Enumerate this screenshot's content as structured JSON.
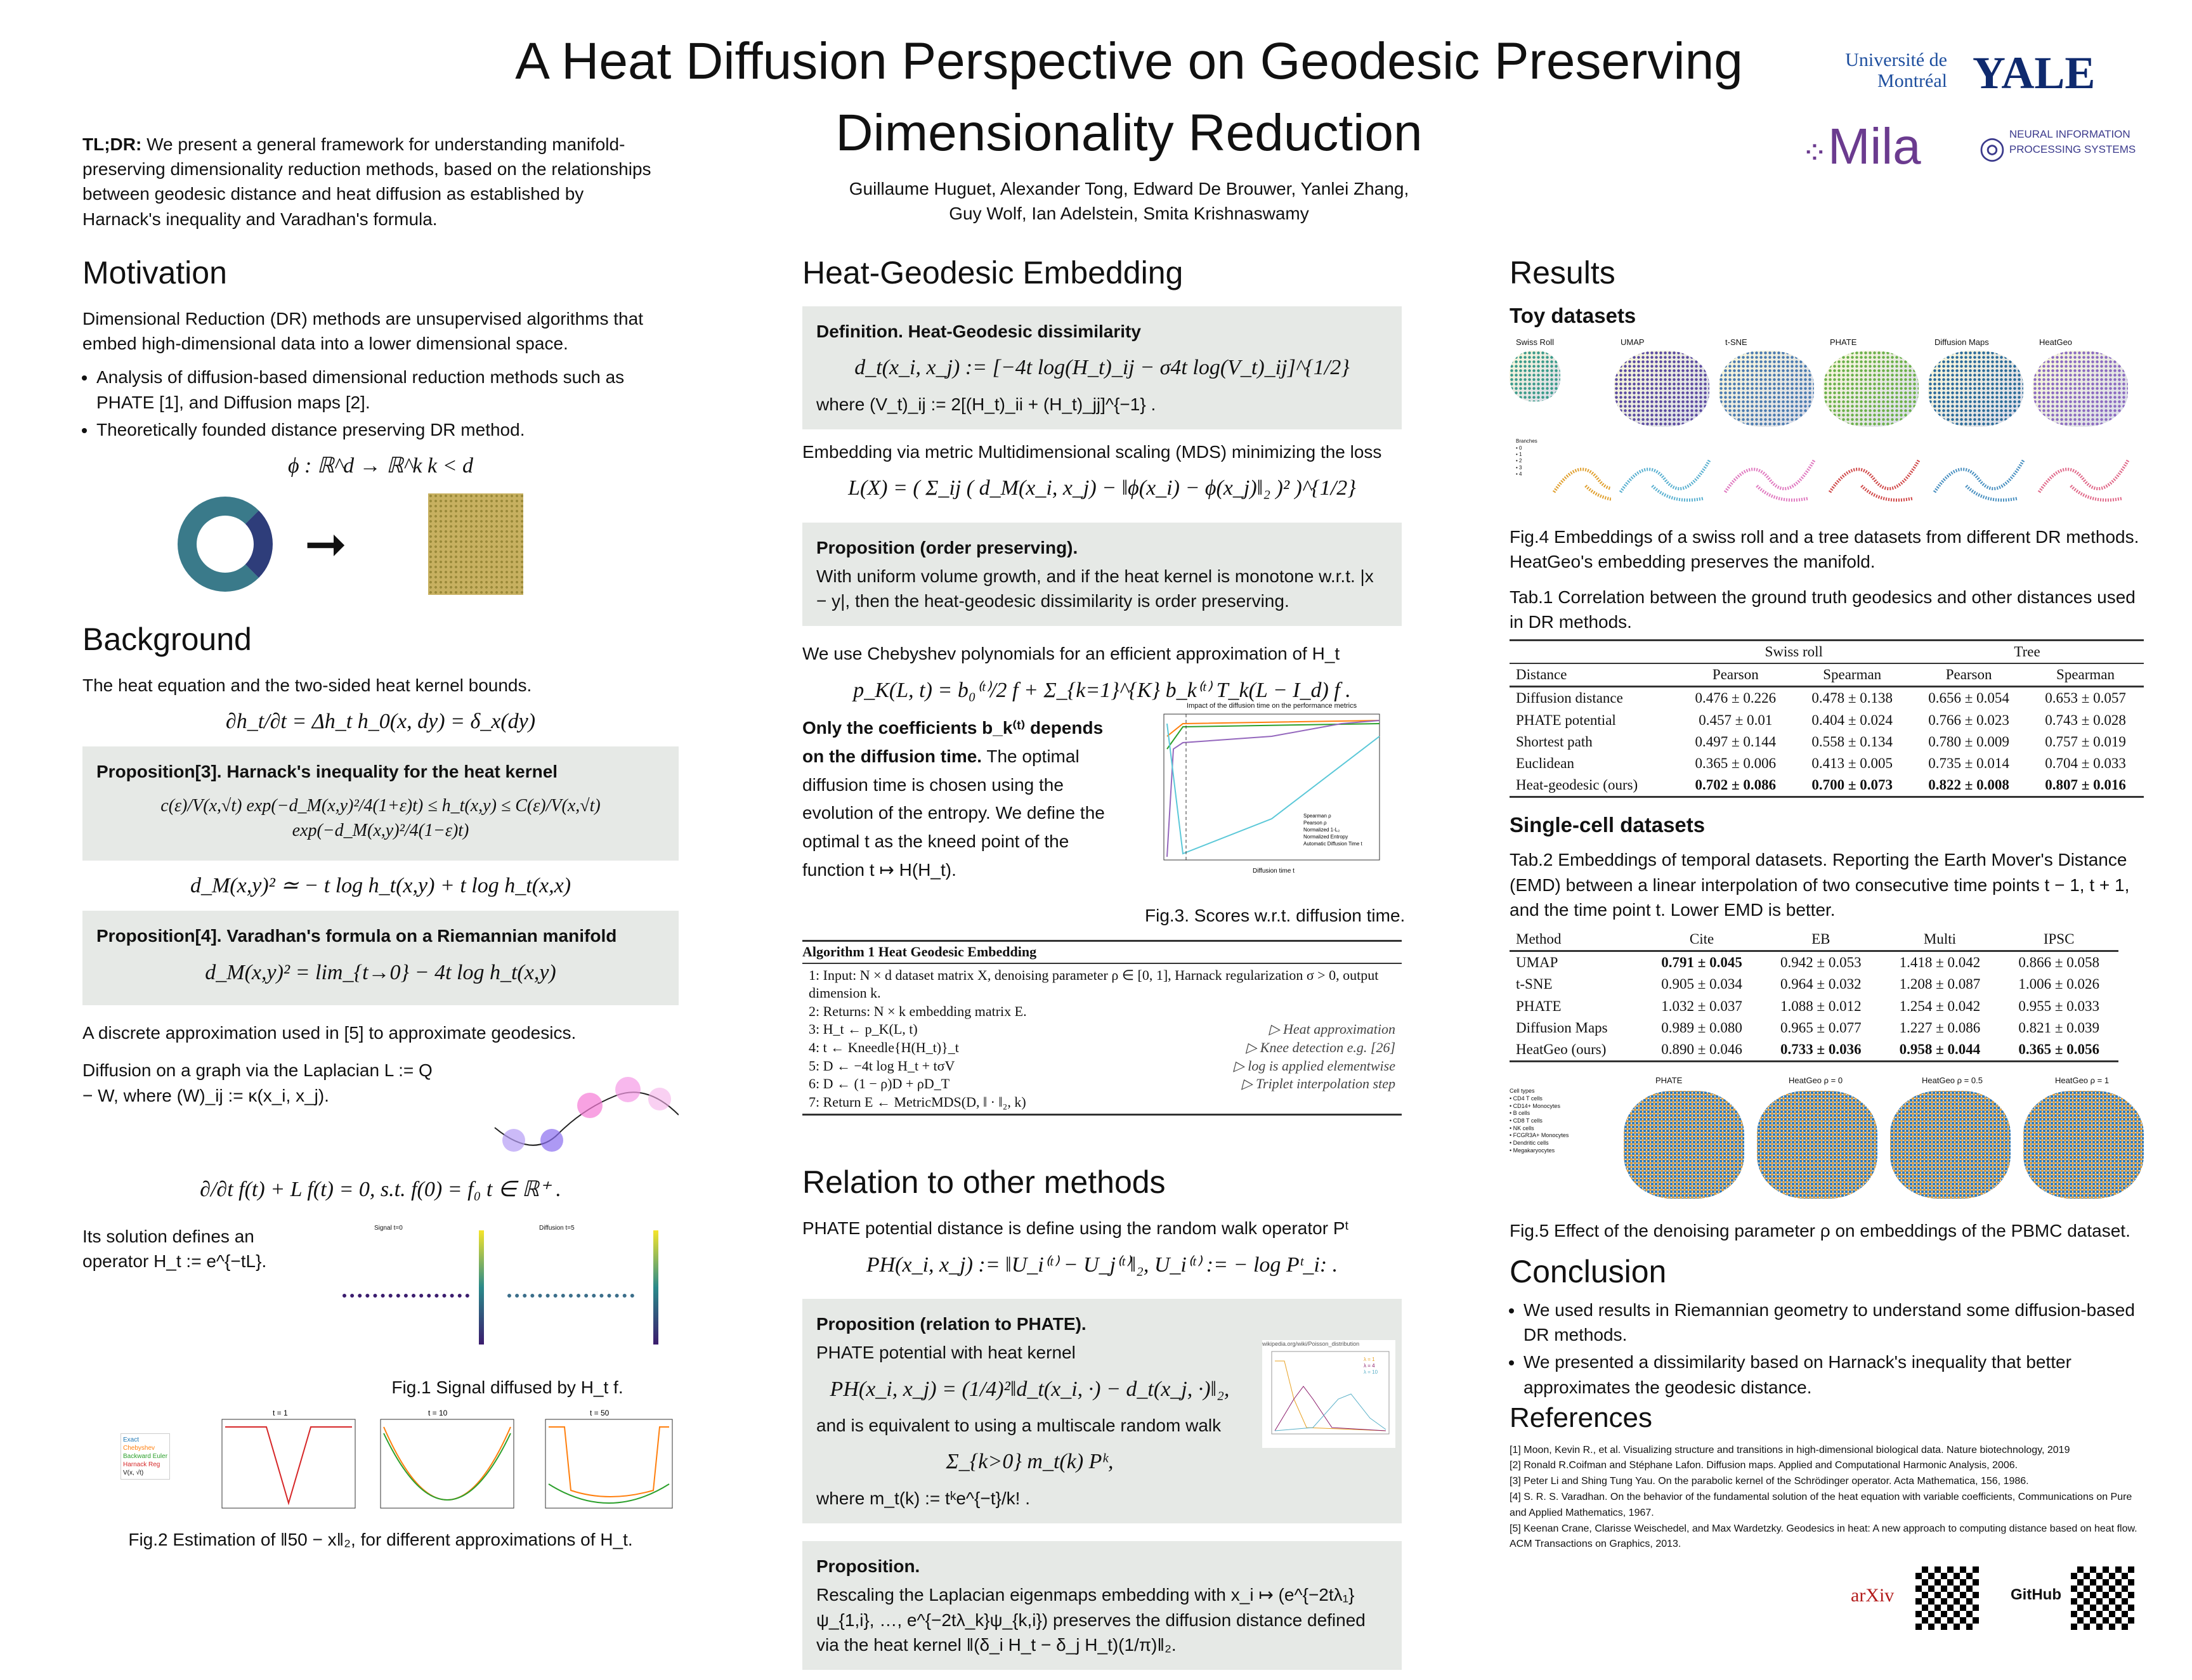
{
  "title": "A Heat Diffusion Perspective on Geodesic Preserving Dimensionality Reduction",
  "authors": [
    "Guillaume Huguet, Alexander Tong, Edward De Brouwer, Yanlei Zhang,",
    "Guy Wolf, Ian Adelstein, Smita Krishnaswamy"
  ],
  "logos": {
    "udem": "Université de Montréal",
    "yale": "YALE",
    "mila": "Mila",
    "neurips": "NEURAL INFORMATION PROCESSING SYSTEMS",
    "arxiv": "arXiv",
    "github": "GitHub"
  },
  "tldr": {
    "label": "TL;DR:",
    "text": "We present a general framework for understanding manifold-preserving dimensionality reduction methods, based on the relationships between geodesic distance and heat diffusion as established by Harnack's inequality and Varadhan's formula."
  },
  "motivation": {
    "heading": "Motivation",
    "text": "Dimensional Reduction (DR) methods are unsupervised algorithms that embed high-dimensional data into a lower dimensional space.",
    "bullets": [
      "Analysis of diffusion-based dimensional reduction methods such as PHATE [1], and Diffusion maps [2].",
      "Theoretically founded distance preserving DR method."
    ],
    "formula": "ϕ : ℝ^d → ℝ^k    k < d"
  },
  "background": {
    "heading": "Background",
    "text": "The heat equation and the two-sided heat kernel bounds.",
    "heat_eq": "∂h_t/∂t = Δh_t    h_0(x, dy) = δ_x(dy)",
    "prop3_title": "Proposition[3]. Harnack's inequality for the heat kernel",
    "prop3_formula": "c(ε)/V(x,√t) exp(−d_M(x,y)²/4(1+ε)t) ≤ h_t(x,y) ≤ C(ε)/V(x,√t) exp(−d_M(x,y)²/4(1−ε)t)",
    "approx": "d_M(x,y)² ≃ − t log h_t(x,y) + t log h_t(x,x)",
    "prop4_title": "Proposition[4]. Varadhan's formula on a Riemannian manifold",
    "prop4_formula": "d_M(x,y)² = lim_{t→0} − 4t log h_t(x,y)",
    "discrete": "A discrete approximation used in [5] to approximate geodesics.",
    "graph": "Diffusion on a graph via the Laplacian L := Q − W, where (W)_ij := κ(x_i, x_j).",
    "graph_eq": "∂/∂t f(t) + L f(t) = 0,  s.t.  f(0) = f₀   t ∈ ℝ⁺ .",
    "solution": "Its solution defines an operator H_t := e^{−tL}.",
    "fig1_caption": "Fig.1 Signal diffused by H_t f.",
    "fig1_titles": [
      "Signal t=0",
      "Diffusion t=5"
    ],
    "fig2_caption": "Fig.2 Estimation of ‖50 − x‖₂, for different approximations of H_t.",
    "fig2_titles": [
      "t = 1",
      "t = 10",
      "t = 50"
    ],
    "fig2_legend": [
      "Exact",
      "Chebyshev",
      "Backward Euler",
      "Harnack Reg",
      "V(x, √t)"
    ]
  },
  "heatgeo": {
    "heading": "Heat-Geodesic Embedding",
    "def_title": "Definition. Heat-Geodesic dissimilarity",
    "def_formula": "d_t(x_i, x_j) := [−4t log(H_t)_ij − σ4t log(V_t)_ij]^{1/2}",
    "def_where": "where (V_t)_ij := 2[(H_t)_ii + (H_t)_jj]^{−1} .",
    "mds": "Embedding via metric Multidimensional scaling (MDS) minimizing the loss",
    "loss": "L(X) = ( Σ_ij ( d_M(x_i, x_j) − ‖ϕ(x_i) − ϕ(x_j)‖₂ )² )^{1/2}",
    "prop_order_title": "Proposition (order preserving).",
    "prop_order_text": "With uniform volume growth, and if the heat kernel is monotone w.r.t. |x − y|, then the heat-geodesic dissimilarity is order preserving.",
    "cheb": "We use Chebyshev polynomials for an efficient approximation of H_t",
    "cheb_formula": "p_K(L, t) = b₀⁽ᵗ⁾/2 f + Σ_{k=1}^{K} b_k⁽ᵗ⁾ T_k(L − I_d) f .",
    "coef_bold": "Only the coefficients b_k⁽ᵗ⁾ depends on the diffusion time.",
    "coef_text": "The optimal diffusion time is chosen using the evolution of the entropy. We define the optimal t as the kneed point of the function t ↦ H(H_t).",
    "fig3_title": "Impact of the diffusion time on the performance metrics",
    "fig3_caption": "Fig.3. Scores w.r.t. diffusion time.",
    "fig3_xlabel": "Diffusion time t",
    "fig3_legend": [
      "Spearman ρ",
      "Pearson ρ",
      "Normalized 1-L₂",
      "Normalized Entropy",
      "Automatic Diffusion Time t"
    ],
    "algo_title": "Algorithm 1 Heat Geodesic Embedding",
    "algo_lines": [
      {
        "n": "1:",
        "t": "Input: N × d dataset matrix X, denoising parameter ρ ∈ [0, 1], Harnack regularization σ > 0, output dimension k.",
        "c": ""
      },
      {
        "n": "2:",
        "t": "Returns: N × k embedding matrix E.",
        "c": ""
      },
      {
        "n": "3:",
        "t": "H_t ← p_K(L, t)",
        "c": "▷ Heat approximation"
      },
      {
        "n": "4:",
        "t": "t ← Kneedle{H(H_t)}_t",
        "c": "▷ Knee detection e.g. [26]"
      },
      {
        "n": "5:",
        "t": "D ← −4t log H_t + tσV",
        "c": "▷ log is applied elementwise"
      },
      {
        "n": "6:",
        "t": "D ← (1 − ρ)D + ρD_T",
        "c": "▷ Triplet interpolation step"
      },
      {
        "n": "7:",
        "t": "Return E ← MetricMDS(D, ‖ · ‖₂, k)",
        "c": ""
      }
    ]
  },
  "relation": {
    "heading": "Relation to other methods",
    "text": "PHATE potential distance is define using the random walk operator Pᵗ",
    "phate_formula": "PH(x_i, x_j) := ‖U_i⁽ᵗ⁾ − U_j⁽ᵗ⁾‖₂,   U_i⁽ᵗ⁾ := − log Pᵗ_i: .",
    "prop_phate_title": "Proposition (relation to PHATE).",
    "prop_phate_text": "PHATE potential with heat kernel",
    "prop_phate_formula": "PH(x_i, x_j) = (1/4)²‖d_t(x_i, ·) − d_t(x_j, ·)‖₂,",
    "equiv": "and is equivalent to using a multiscale random walk",
    "walk": "Σ_{k>0} m_t(k) Pᵏ,",
    "where": "where m_t(k) := tᵏe^{−t}/k! .",
    "poisson_src": "wikipedia.org/wiki/Poisson_distribution",
    "poisson_legend": [
      "λ = 1",
      "λ = 4",
      "λ = 10"
    ],
    "prop_le_title": "Proposition.",
    "prop_le_text": "Rescaling the Laplacian eigenmaps embedding with x_i ↦ (e^{−2tλ₁}ψ_{1,i}, …, e^{−2tλ_k}ψ_{k,i}) preserves the diffusion distance defined via the heat kernel ‖(δ_i H_t − δ_j H_t)(1/π)‖₂."
  },
  "results": {
    "heading": "Results",
    "toy_heading": "Toy datasets",
    "toy_titles": [
      "Swiss Roll",
      "UMAP",
      "t-SNE",
      "PHATE",
      "Diffusion Maps",
      "HeatGeo"
    ],
    "branches_legend": {
      "title": "Branches",
      "items": [
        "0",
        "1",
        "2",
        "3",
        "4"
      ]
    },
    "fig4_caption": "Fig.4 Embeddings of a swiss roll and a tree datasets from different DR methods. HeatGeo's embedding preserves the manifold.",
    "tab1_caption": "Tab.1 Correlation between the ground truth geodesics and other distances used in DR methods.",
    "tab1": {
      "groups": [
        "Swiss roll",
        "Tree"
      ],
      "headers": [
        "Distance",
        "Pearson",
        "Spearman",
        "Pearson",
        "Spearman"
      ],
      "rows": [
        [
          "Diffusion distance",
          "0.476 ± 0.226",
          "0.478 ± 0.138",
          "0.656 ± 0.054",
          "0.653 ± 0.057"
        ],
        [
          "PHATE potential",
          "0.457 ± 0.01",
          "0.404 ± 0.024",
          "0.766 ± 0.023",
          "0.743 ± 0.028"
        ],
        [
          "Shortest path",
          "0.497 ± 0.144",
          "0.558 ± 0.134",
          "0.780 ± 0.009",
          "0.757 ± 0.019"
        ],
        [
          "Euclidean",
          "0.365 ± 0.006",
          "0.413 ± 0.005",
          "0.735 ± 0.014",
          "0.704 ± 0.033"
        ],
        [
          "Heat-geodesic (ours)",
          "0.702 ± 0.086",
          "0.700 ± 0.073",
          "0.822 ± 0.008",
          "0.807 ± 0.016"
        ]
      ]
    },
    "sc_heading": "Single-cell datasets",
    "tab2_caption": "Tab.2 Embeddings of temporal datasets. Reporting the Earth Mover's Distance (EMD) between a linear interpolation of two consecutive time points t − 1, t + 1, and the time point t. Lower EMD is better.",
    "tab2": {
      "headers": [
        "Method",
        "Cite",
        "EB",
        "Multi",
        "IPSC"
      ],
      "rows": [
        [
          "UMAP",
          "0.791 ± 0.045",
          "0.942 ± 0.053",
          "1.418 ± 0.042",
          "0.866 ± 0.058"
        ],
        [
          "t-SNE",
          "0.905 ± 0.034",
          "0.964 ± 0.032",
          "1.208 ± 0.087",
          "1.006 ± 0.026"
        ],
        [
          "PHATE",
          "1.032 ± 0.037",
          "1.088 ± 0.012",
          "1.254 ± 0.042",
          "0.955 ± 0.033"
        ],
        [
          "Diffusion Maps",
          "0.989 ± 0.080",
          "0.965 ± 0.077",
          "1.227 ± 0.086",
          "0.821 ± 0.039"
        ],
        [
          "HeatGeo (ours)",
          "0.890 ± 0.046",
          "0.733 ± 0.036",
          "0.958 ± 0.044",
          "0.365 ± 0.056"
        ]
      ]
    },
    "pbmc_titles": [
      "PHATE",
      "HeatGeo ρ = 0",
      "HeatGeo ρ = 0.5",
      "HeatGeo ρ = 1"
    ],
    "pbmc_legend": {
      "title": "Cell types",
      "items": [
        "CD4 T cells",
        "CD14+ Monocytes",
        "B cells",
        "CD8 T cells",
        "NK cells",
        "FCGR3A+ Monocytes",
        "Dendritic cells",
        "Megakaryocytes"
      ]
    },
    "fig5_caption": "Fig.5 Effect of the denoising parameter ρ on embeddings of the PBMC dataset."
  },
  "conclusion": {
    "heading": "Conclusion",
    "bullets": [
      "We used results in Riemannian geometry to understand some diffusion-based DR methods.",
      "We presented a dissimilarity based on Harnack's inequality that better approximates the geodesic distance."
    ]
  },
  "references": {
    "heading": "References",
    "items": [
      "[1] Moon, Kevin R., et al. Visualizing structure and transitions in high-dimensional biological data. Nature biotechnology, 2019",
      "[2] Ronald R.Coifman and Stéphane Lafon. Diffusion maps. Applied and Computational Harmonic Analysis, 2006.",
      "[3] Peter Li and Shing Tung Yau. On the parabolic kernel of the Schrödinger operator. Acta Mathematica, 156, 1986.",
      "[4] S. R. S. Varadhan. On the behavior of the fundamental solution of the heat equation with variable coefficients, Communications on Pure and Applied Mathematics, 1967.",
      "[5] Keenan Crane, Clarisse Weischedel, and Max Wardetzky. Geodesics in heat: A new approach to computing distance based on heat flow. ACM Transactions on Graphics, 2013."
    ]
  },
  "colors": {
    "box": "#e6e9e6",
    "mila": "#6b3b8f",
    "yale": "#0f2a6e",
    "udem": "#1d4e9e",
    "arxiv": "#b31b1b"
  }
}
